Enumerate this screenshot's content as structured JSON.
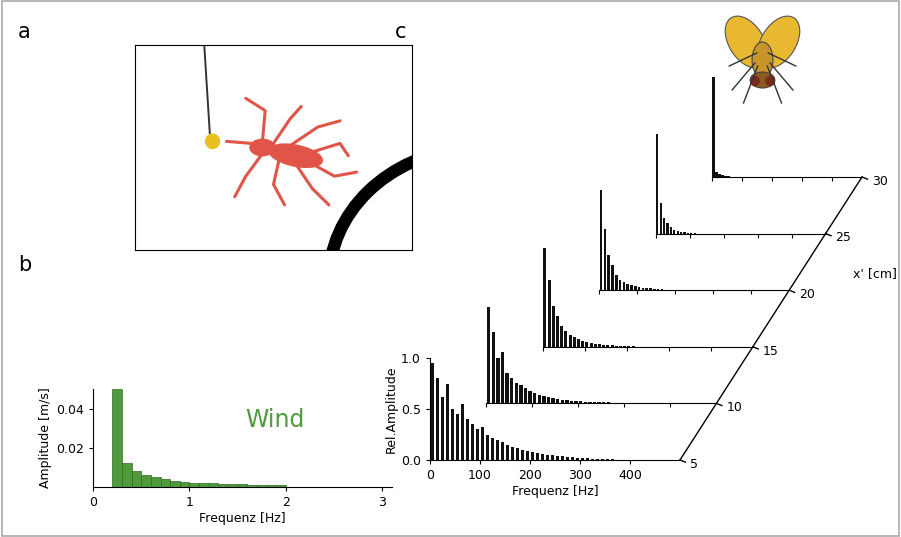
{
  "chart_data": [
    {
      "type": "illustration",
      "title": "a"
    },
    {
      "type": "histogram",
      "title": "b",
      "annotations": [
        "Wind"
      ],
      "x_label": "Frequenz [Hz]",
      "y_label": "Amplitude [m/s]",
      "bins": [
        0.2,
        0.3,
        0.4,
        0.5,
        0.6,
        0.7,
        0.8,
        0.9,
        1.0,
        1.1,
        1.2,
        1.3,
        1.4,
        1.5,
        1.6,
        1.7,
        1.8,
        1.9,
        2.0
      ],
      "values": [
        0.05,
        0.012,
        0.008,
        0.006,
        0.005,
        0.004,
        0.0032,
        0.0026,
        0.0022,
        0.002,
        0.0018,
        0.0016,
        0.0015,
        0.0014,
        0.0012,
        0.0011,
        0.001,
        0.0009
      ],
      "color": "#4f9a3c",
      "xlim": [
        0,
        3.1
      ],
      "xticks": [
        0,
        1,
        2,
        3
      ],
      "ylim": [
        0,
        0.05
      ],
      "yticks": [
        0.02,
        0.04
      ]
    },
    {
      "type": "waterfall",
      "title": "c",
      "x_label": "Frequenz [Hz]",
      "y_label": "Rel.Amplitude",
      "z_label": "x' [cm]",
      "color": "#111111",
      "x": [
        5,
        15,
        25,
        35,
        45,
        55,
        65,
        75,
        85,
        95,
        105,
        115,
        125,
        135,
        145,
        155,
        165,
        175,
        185,
        195,
        205,
        215,
        225,
        235,
        245,
        255,
        265,
        275,
        285,
        295,
        305,
        315,
        325,
        335,
        345,
        355,
        365,
        375,
        385,
        395
      ],
      "series": [
        {
          "z": 5,
          "values": [
            0.95,
            0.8,
            0.62,
            0.75,
            0.5,
            0.45,
            0.55,
            0.4,
            0.35,
            0.3,
            0.32,
            0.25,
            0.22,
            0.2,
            0.18,
            0.15,
            0.13,
            0.12,
            0.1,
            0.09,
            0.08,
            0.07,
            0.06,
            0.05,
            0.05,
            0.04,
            0.04,
            0.03,
            0.03,
            0.02,
            0.02,
            0.02,
            0.01,
            0.01,
            0.01,
            0.01,
            0.01,
            0,
            0,
            0
          ]
        },
        {
          "z": 10,
          "values": [
            0.95,
            0.7,
            0.45,
            0.5,
            0.3,
            0.25,
            0.2,
            0.18,
            0.15,
            0.12,
            0.1,
            0.08,
            0.07,
            0.06,
            0.05,
            0.04,
            0.03,
            0.03,
            0.02,
            0.02,
            0.02,
            0.01,
            0.01,
            0.01,
            0.01,
            0.01,
            0.01,
            0,
            0,
            0,
            0,
            0,
            0,
            0,
            0,
            0,
            0,
            0,
            0,
            0
          ]
        },
        {
          "z": 15,
          "values": [
            0.97,
            0.65,
            0.4,
            0.3,
            0.2,
            0.15,
            0.12,
            0.1,
            0.08,
            0.06,
            0.05,
            0.04,
            0.03,
            0.03,
            0.02,
            0.02,
            0.02,
            0.01,
            0.01,
            0.01,
            0.01,
            0.01,
            0,
            0,
            0,
            0,
            0,
            0,
            0,
            0,
            0,
            0,
            0,
            0,
            0,
            0,
            0,
            0,
            0,
            0
          ]
        },
        {
          "z": 20,
          "values": [
            0.98,
            0.6,
            0.35,
            0.25,
            0.15,
            0.1,
            0.08,
            0.06,
            0.05,
            0.04,
            0.03,
            0.02,
            0.02,
            0.02,
            0.01,
            0.01,
            0.01,
            0,
            0,
            0,
            0,
            0,
            0,
            0,
            0,
            0,
            0,
            0,
            0,
            0,
            0,
            0,
            0,
            0,
            0,
            0,
            0,
            0,
            0,
            0
          ]
        },
        {
          "z": 25,
          "values": [
            0.98,
            0.3,
            0.15,
            0.1,
            0.06,
            0.04,
            0.03,
            0.02,
            0.02,
            0.01,
            0.01,
            0.01,
            0,
            0,
            0,
            0,
            0,
            0,
            0,
            0,
            0,
            0,
            0,
            0,
            0,
            0,
            0,
            0,
            0,
            0,
            0,
            0,
            0,
            0,
            0,
            0,
            0,
            0,
            0,
            0
          ]
        },
        {
          "z": 30,
          "values": [
            0.98,
            0.05,
            0.03,
            0.02,
            0.01,
            0.01,
            0,
            0,
            0,
            0,
            0,
            0,
            0,
            0,
            0,
            0,
            0,
            0,
            0,
            0,
            0,
            0,
            0,
            0,
            0,
            0,
            0,
            0,
            0,
            0,
            0,
            0,
            0,
            0,
            0,
            0,
            0,
            0,
            0,
            0
          ]
        }
      ],
      "xlim": [
        0,
        500
      ],
      "xticks": [
        0,
        100,
        200,
        300,
        400
      ],
      "ylim": [
        0,
        1.0
      ],
      "yticks": [
        0.0,
        0.5,
        1.0
      ],
      "zlim": [
        5,
        30
      ],
      "zticks": [
        5,
        10,
        15,
        20,
        25,
        30
      ]
    }
  ]
}
